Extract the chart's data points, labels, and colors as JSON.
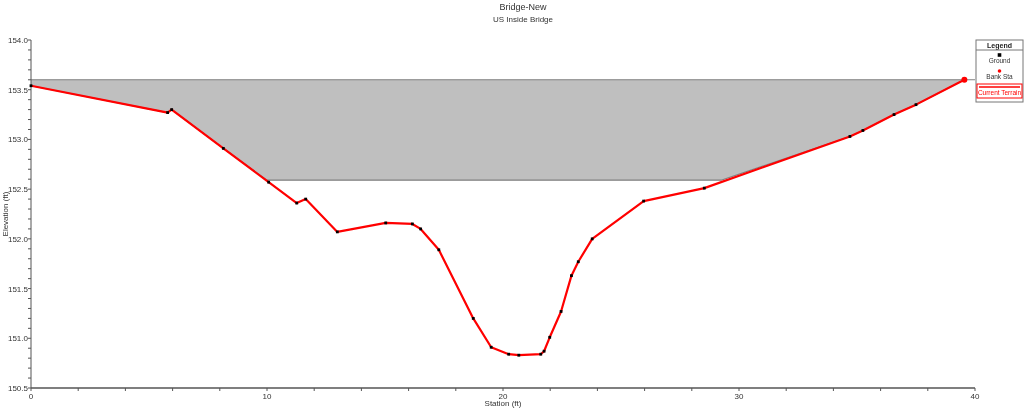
{
  "chart_data": {
    "type": "line",
    "title": "Bridge-New",
    "subtitle": "US Inside Bridge",
    "xlabel": "Station (ft)",
    "ylabel": "Elevation (ft)",
    "legend_title": "Legend",
    "legend": "top right",
    "grid": false,
    "ref_lines": [
      {
        "axis": "y",
        "value": 153.6,
        "color": "#808080"
      }
    ],
    "xlim": [
      0,
      40
    ],
    "ylim": [
      150.5,
      154.0
    ],
    "xticks": [
      0,
      {
        "value": 2,
        "label": null
      },
      {
        "value": 4,
        "label": null
      },
      {
        "value": 6,
        "label": null
      },
      {
        "value": 8,
        "label": null
      },
      10,
      {
        "value": 12,
        "label": null
      },
      {
        "value": 14,
        "label": null
      },
      {
        "value": 16,
        "label": null
      },
      {
        "value": 18,
        "label": null
      },
      20,
      {
        "value": 22,
        "label": null
      },
      {
        "value": 24,
        "label": null
      },
      {
        "value": 26,
        "label": null
      },
      {
        "value": 28,
        "label": null
      },
      30,
      {
        "value": 32,
        "label": null
      },
      {
        "value": 34,
        "label": null
      },
      {
        "value": 36,
        "label": null
      },
      {
        "value": 38,
        "label": null
      },
      40
    ],
    "yticks": [
      {
        "value": 150.5,
        "label": "150.5"
      },
      {
        "value": 150.6,
        "label": null
      },
      {
        "value": 150.7,
        "label": null
      },
      {
        "value": 150.8,
        "label": null
      },
      {
        "value": 150.9,
        "label": null
      },
      {
        "value": 151.0,
        "label": "151.0"
      },
      {
        "value": 151.1,
        "label": null
      },
      {
        "value": 151.2,
        "label": null
      },
      {
        "value": 151.3,
        "label": null
      },
      {
        "value": 151.4,
        "label": null
      },
      {
        "value": 151.5,
        "label": "151.5"
      },
      {
        "value": 151.6,
        "label": null
      },
      {
        "value": 151.7,
        "label": null
      },
      {
        "value": 151.8,
        "label": null
      },
      {
        "value": 151.9,
        "label": null
      },
      {
        "value": 152.0,
        "label": "152.0"
      },
      {
        "value": 152.1,
        "label": null
      },
      {
        "value": 152.2,
        "label": null
      },
      {
        "value": 152.3,
        "label": null
      },
      {
        "value": 152.4,
        "label": null
      },
      {
        "value": 152.5,
        "label": "152.5"
      },
      {
        "value": 152.6,
        "label": null
      },
      {
        "value": 152.7,
        "label": null
      },
      {
        "value": 152.8,
        "label": null
      },
      {
        "value": 152.9,
        "label": null
      },
      {
        "value": 153.0,
        "label": "153.0"
      },
      {
        "value": 153.1,
        "label": null
      },
      {
        "value": 153.2,
        "label": null
      },
      {
        "value": 153.3,
        "label": null
      },
      {
        "value": 153.4,
        "label": null
      },
      {
        "value": 153.5,
        "label": "153.5"
      },
      {
        "value": 153.6,
        "label": null
      },
      {
        "value": 153.7,
        "label": null
      },
      {
        "value": 153.8,
        "label": null
      },
      {
        "value": 153.9,
        "label": null
      },
      {
        "value": 154.0,
        "label": "154.0"
      }
    ],
    "series": [
      {
        "color": "#808080",
        "x": [
          0,
          5.79,
          5.96,
          8.15,
          10.0,
          29.24,
          34.7,
          35.25,
          36.57,
          37.5,
          39.55
        ],
        "values": [
          153.54,
          153.27,
          153.3,
          152.91,
          152.59,
          152.59,
          153.03,
          153.09,
          153.25,
          153.35,
          153.6
        ],
        "lower": [
          153.54,
          153.27,
          153.3,
          152.91,
          152.59,
          152.59,
          153.03,
          153.09,
          153.25,
          153.35,
          153.6
        ],
        "upper": [
          153.6,
          153.6,
          153.6,
          153.6,
          153.6,
          153.6,
          153.6,
          153.6,
          153.6,
          153.6,
          153.6
        ]
      },
      {
        "type": "line",
        "name": "Current Terrain",
        "color": "#ff0000",
        "line_style": "solid",
        "marker": "none",
        "x": [
          0,
          5.79,
          5.96,
          8.15,
          10.07,
          11.26,
          11.64,
          12.98,
          15.03,
          16.16,
          16.51,
          17.28,
          18.74,
          19.5,
          20.24,
          20.67,
          21.6,
          21.74,
          21.98,
          22.46,
          22.9,
          23.19,
          23.78,
          25.96,
          28.53,
          34.7,
          35.25,
          36.57,
          37.5,
          39.55
        ],
        "values": [
          153.54,
          153.27,
          153.3,
          152.91,
          152.57,
          152.36,
          152.4,
          152.07,
          152.16,
          152.15,
          152.1,
          151.89,
          151.2,
          150.91,
          150.84,
          150.83,
          150.84,
          150.87,
          151.01,
          151.27,
          151.63,
          151.77,
          152.0,
          152.38,
          152.51,
          153.03,
          153.09,
          153.25,
          153.35,
          153.6
        ]
      },
      {
        "type": "scatter",
        "name": "Ground",
        "color": "#000000",
        "marker": "square",
        "x": [
          0,
          5.79,
          5.96,
          8.15,
          10.07,
          11.26,
          11.64,
          12.98,
          15.03,
          16.16,
          16.51,
          17.28,
          18.74,
          19.5,
          20.24,
          20.67,
          21.6,
          21.74,
          21.98,
          22.46,
          22.9,
          23.19,
          23.78,
          25.96,
          28.53,
          34.7,
          35.25,
          36.57,
          37.5
        ],
        "values": [
          153.54,
          153.27,
          153.3,
          152.91,
          152.57,
          152.36,
          152.4,
          152.07,
          152.16,
          152.15,
          152.1,
          151.89,
          151.2,
          150.91,
          150.84,
          150.83,
          150.84,
          150.87,
          151.01,
          151.27,
          151.63,
          151.77,
          152.0,
          152.38,
          152.51,
          153.03,
          153.09,
          153.25,
          153.35
        ]
      },
      {
        "type": "scatter",
        "name": "Bank Sta",
        "color": "#ff0000",
        "marker": "circle",
        "x": [
          39.55
        ],
        "values": [
          153.6
        ]
      }
    ]
  }
}
